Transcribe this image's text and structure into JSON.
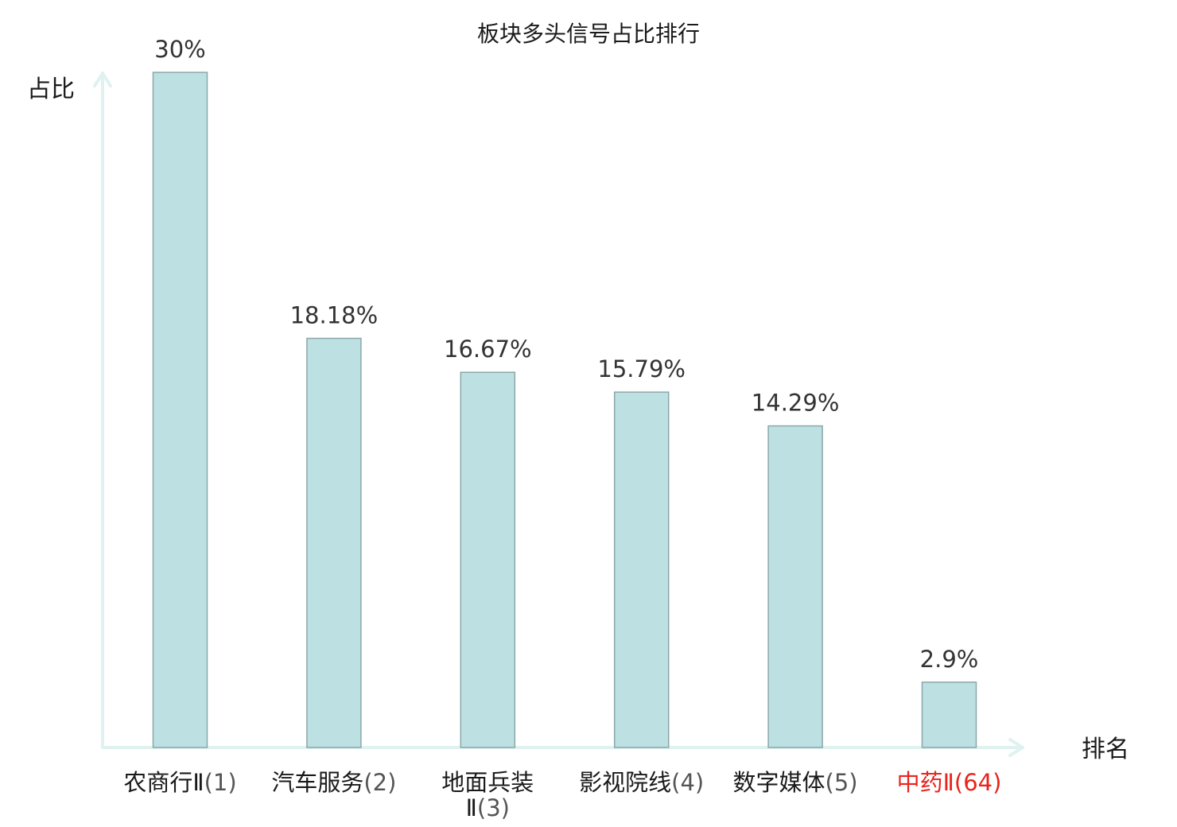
{
  "chart_data": {
    "type": "bar",
    "title": "板块多头信号占比排行",
    "ylabel": "占比",
    "xlabel": "排名",
    "categories": [
      {
        "name": "农商行Ⅱ",
        "rank": "(1)",
        "highlight": false
      },
      {
        "name": "汽车服务",
        "rank": "(2)",
        "highlight": false
      },
      {
        "name": "地面兵装Ⅱ",
        "rank": "(3)",
        "highlight": false
      },
      {
        "name": "影视院线",
        "rank": "(4)",
        "highlight": false
      },
      {
        "name": "数字媒体",
        "rank": "(5)",
        "highlight": false
      },
      {
        "name": "中药Ⅱ",
        "rank": "(64)",
        "highlight": true
      }
    ],
    "values": [
      30,
      18.18,
      16.67,
      15.79,
      14.29,
      2.9
    ],
    "value_labels": [
      "30%",
      "18.18%",
      "16.67%",
      "15.79%",
      "14.29%",
      "2.9%"
    ],
    "ylim": [
      0,
      30
    ],
    "grid": false,
    "legend": "none",
    "colors": {
      "bar_fill": "#bde0e2",
      "bar_stroke": "#8aa7a9",
      "axis": "#dff2ef",
      "highlight_text": "#e8241d"
    }
  }
}
